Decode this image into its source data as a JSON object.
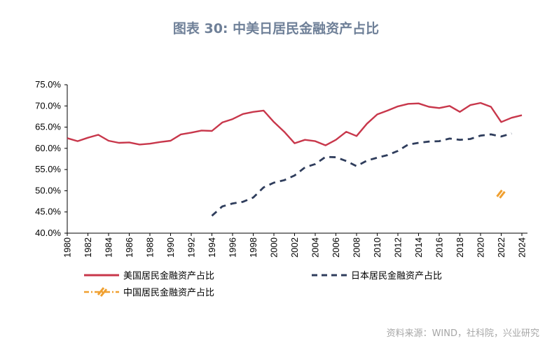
{
  "title": "图表 30: 中美日居民金融资产占比",
  "source": "资料来源：WIND，社科院，兴业研究",
  "colors": {
    "us": "#c8374b",
    "jp": "#2f3d5c",
    "cn": "#f0a030",
    "axis": "#000000",
    "title": "#6f8098",
    "source": "#a6a6a6"
  },
  "chart_data": {
    "type": "line",
    "y_ticks": [
      "75.0%",
      "70.0%",
      "65.0%",
      "60.0%",
      "55.0%",
      "50.0%",
      "45.0%",
      "40.0%"
    ],
    "ylim": [
      40,
      75
    ],
    "x_ticks": [
      "1980",
      "1982",
      "1984",
      "1986",
      "1988",
      "1990",
      "1992",
      "1994",
      "1996",
      "1998",
      "2000",
      "2002",
      "2004",
      "2006",
      "2008",
      "2010",
      "2012",
      "2014",
      "2016",
      "2018",
      "2020",
      "2022",
      "2024"
    ],
    "xlim": [
      1980,
      2024
    ],
    "legend_position": "bottom",
    "series": [
      {
        "name": "美国居民金融资产占比",
        "style": "solid",
        "x": [
          1980,
          1981,
          1982,
          1983,
          1984,
          1985,
          1986,
          1987,
          1988,
          1989,
          1990,
          1991,
          1992,
          1993,
          1994,
          1995,
          1996,
          1997,
          1998,
          1999,
          2000,
          2001,
          2002,
          2003,
          2004,
          2005,
          2006,
          2007,
          2008,
          2009,
          2010,
          2011,
          2012,
          2013,
          2014,
          2015,
          2016,
          2017,
          2018,
          2019,
          2020,
          2021,
          2022,
          2023,
          2024
        ],
        "values": [
          62.4,
          61.7,
          62.5,
          63.2,
          61.8,
          61.3,
          61.4,
          60.9,
          61.1,
          61.5,
          61.8,
          63.3,
          63.7,
          64.2,
          64.1,
          66.1,
          66.9,
          68.1,
          68.6,
          68.9,
          66.2,
          63.9,
          61.2,
          62.0,
          61.7,
          60.7,
          62.0,
          63.9,
          62.9,
          65.8,
          68.0,
          68.9,
          69.9,
          70.5,
          70.6,
          69.8,
          69.5,
          70.0,
          68.6,
          70.2,
          70.7,
          69.8,
          66.2,
          67.2,
          67.8
        ]
      },
      {
        "name": "日本居民金融资产占比",
        "style": "dashed",
        "x": [
          1994,
          1995,
          1996,
          1997,
          1998,
          1999,
          2000,
          2001,
          2002,
          2003,
          2004,
          2005,
          2006,
          2007,
          2008,
          2009,
          2010,
          2011,
          2012,
          2013,
          2014,
          2015,
          2016,
          2017,
          2018,
          2019,
          2020,
          2021,
          2022,
          2023
        ],
        "values": [
          44.1,
          46.3,
          47.0,
          47.4,
          48.4,
          50.8,
          51.9,
          52.5,
          53.6,
          55.5,
          56.3,
          58.0,
          57.9,
          57.0,
          55.8,
          57.1,
          57.8,
          58.4,
          59.4,
          60.9,
          61.3,
          61.6,
          61.7,
          62.3,
          62.0,
          62.2,
          63.0,
          63.3,
          62.8,
          63.5
        ]
      },
      {
        "name": "中国居民金融资产占比",
        "style": "dash-dot",
        "x": [
          2022
        ],
        "values": [
          49.3
        ]
      }
    ]
  }
}
